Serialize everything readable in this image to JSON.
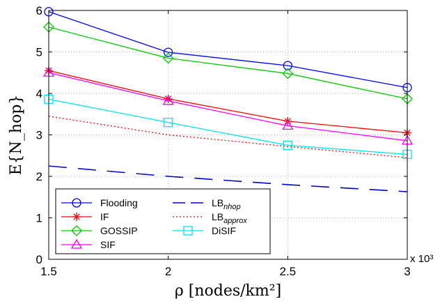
{
  "chart_data": {
    "type": "line",
    "xlabel": "ρ [nodes/km²]",
    "ylabel": "E{N_hop}",
    "x_multiplier": "x 10³",
    "x": [
      1.5,
      2,
      2.5,
      3
    ],
    "xlim": [
      1.5,
      3
    ],
    "ylim": [
      0,
      6
    ],
    "xticks": [
      "1.5",
      "2",
      "2.5",
      "3"
    ],
    "yticks": [
      "0",
      "1",
      "2",
      "3",
      "4",
      "5",
      "6"
    ],
    "grid": true,
    "legend_position": "bottom-left",
    "series": [
      {
        "name": "Flooding",
        "values": [
          5.97,
          4.99,
          4.67,
          4.14
        ],
        "color": "#0000ff",
        "marker": "circle",
        "line": "solid"
      },
      {
        "name": "IF",
        "values": [
          4.55,
          3.87,
          3.33,
          3.05
        ],
        "color": "#ff0000",
        "marker": "star",
        "line": "solid"
      },
      {
        "name": "GOSSIP",
        "values": [
          5.6,
          4.85,
          4.48,
          3.87
        ],
        "color": "#00cc00",
        "marker": "diamond",
        "line": "solid"
      },
      {
        "name": "SIF",
        "values": [
          4.5,
          3.82,
          3.22,
          2.86
        ],
        "color": "#ff00ff",
        "marker": "triangle",
        "line": "solid"
      },
      {
        "name": "LB_nhop",
        "name_main": "LB",
        "name_sub": "nhop",
        "values": [
          2.25,
          2.0,
          1.8,
          1.63
        ],
        "color": "#0000cc",
        "marker": "none",
        "line": "dashed"
      },
      {
        "name": "LB_approx",
        "name_main": "LB",
        "name_sub": "approx",
        "values": [
          3.45,
          3.0,
          2.72,
          2.45
        ],
        "color": "#ff0000",
        "marker": "none",
        "line": "dotted"
      },
      {
        "name": "DiSIF",
        "values": [
          3.86,
          3.3,
          2.75,
          2.53
        ],
        "color": "#00e5ee",
        "marker": "square",
        "line": "solid"
      }
    ]
  }
}
